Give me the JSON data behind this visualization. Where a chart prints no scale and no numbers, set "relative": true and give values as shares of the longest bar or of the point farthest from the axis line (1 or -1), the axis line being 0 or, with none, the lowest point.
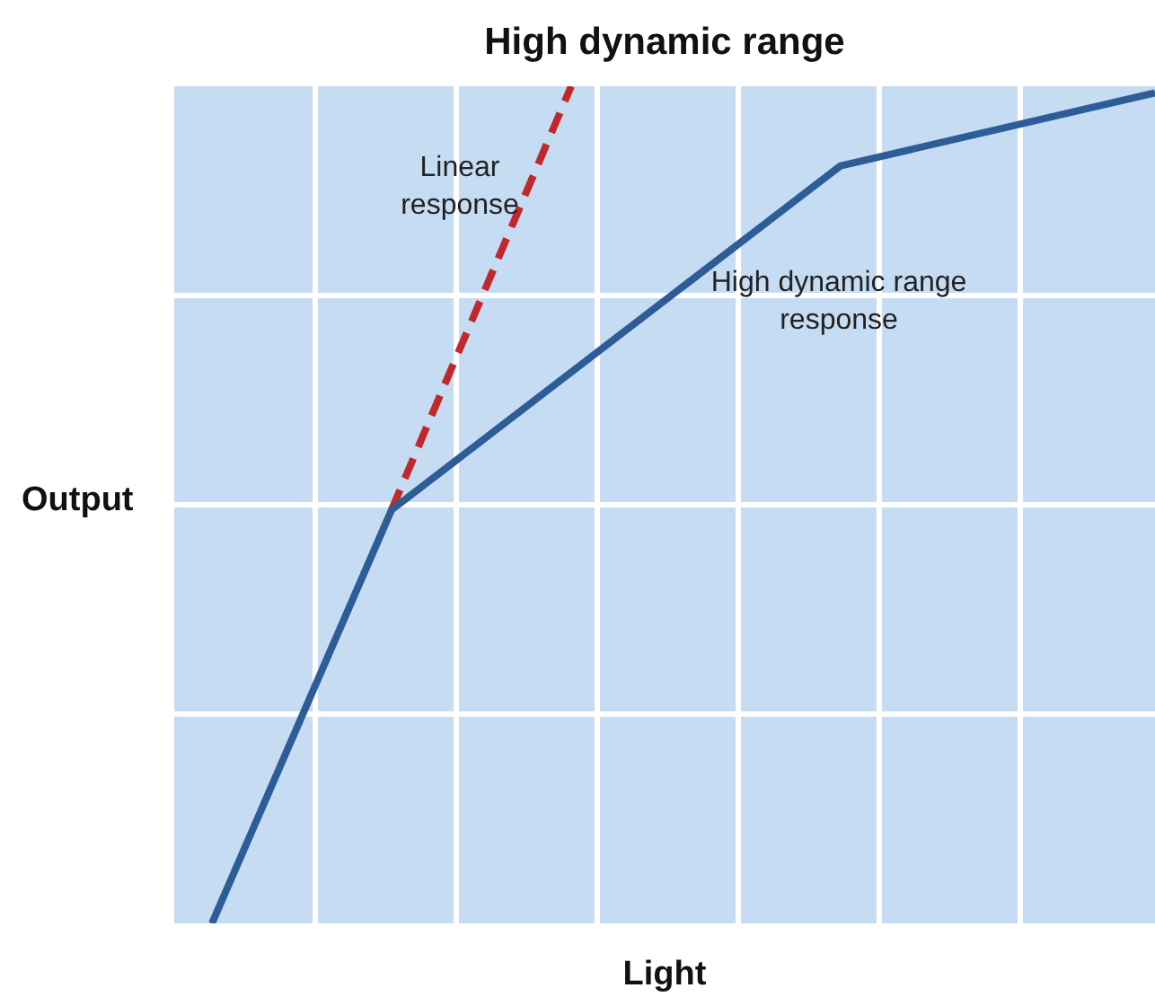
{
  "chart_data": {
    "type": "line",
    "title": "High dynamic range",
    "xlabel": "Light",
    "ylabel": "Output",
    "relative": true,
    "categories": [
      null,
      null,
      null,
      null,
      null,
      null,
      null,
      null,
      null,
      null,
      null,
      null,
      null,
      null,
      null,
      null,
      null,
      null,
      null,
      null,
      null,
      null
    ],
    "grid": true,
    "legend": false,
    "marker": "none",
    "series": [
      {
        "color": "#2e5c97",
        "values": [
          0,
          null,
          null,
          null,
          0.494,
          null,
          null,
          null,
          null,
          null,
          null,
          null,
          null,
          null,
          0.905,
          null,
          null,
          null,
          null,
          null,
          null,
          0.992
        ],
        "line_style": "solid"
      },
      {
        "color": "#c0282d",
        "values": [
          null,
          null,
          null,
          null,
          0.494,
          null,
          null,
          null,
          1,
          null,
          null,
          null,
          null,
          null,
          null,
          null,
          null,
          null,
          null,
          null,
          null,
          null
        ],
        "line_style": "dashed"
      }
    ],
    "annotations": [
      "Linear response",
      "High dynamic range response"
    ]
  }
}
